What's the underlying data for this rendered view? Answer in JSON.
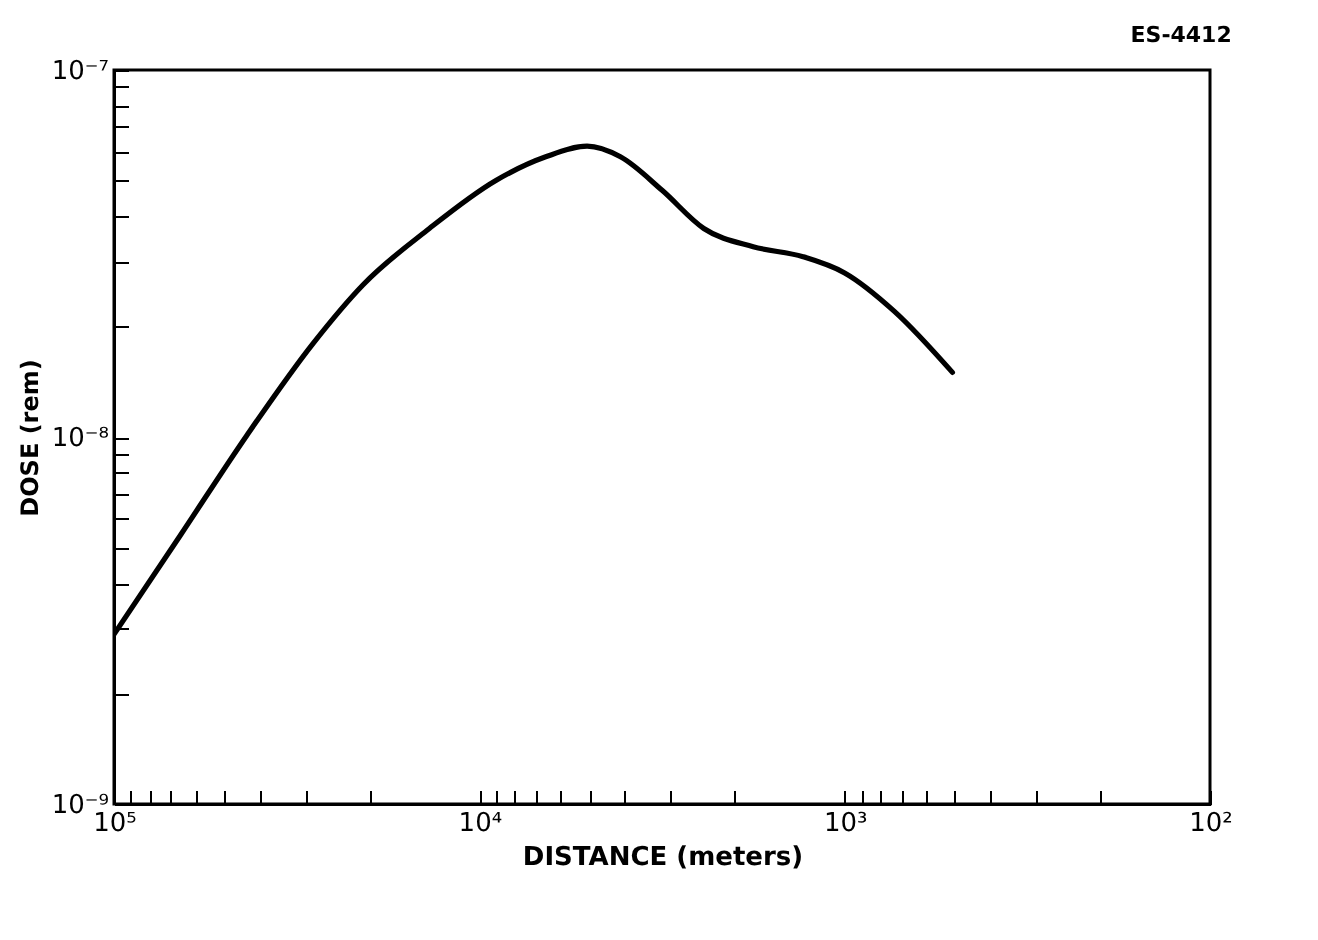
{
  "chart_data": {
    "type": "line",
    "xlabel": "DISTANCE (meters)",
    "ylabel": "DOSE (rem)",
    "annotations": [
      "ES-4412"
    ],
    "log": "xy",
    "grid": false,
    "marker": "none",
    "line_style": "solid",
    "xlim": [
      100000,
      100
    ],
    "ylim": [
      1e-09,
      1e-07
    ],
    "xticks": [
      {
        "value": 100000,
        "label": "10⁵"
      },
      {
        "value": 90000,
        "label": null
      },
      {
        "value": 80000,
        "label": null
      },
      {
        "value": 70000,
        "label": null
      },
      {
        "value": 60000,
        "label": null
      },
      {
        "value": 50000,
        "label": null
      },
      {
        "value": 40000,
        "label": null
      },
      {
        "value": 30000,
        "label": null
      },
      {
        "value": 20000,
        "label": null
      },
      {
        "value": 10000,
        "label": "10⁴"
      },
      {
        "value": 9000,
        "label": null
      },
      {
        "value": 8000,
        "label": null
      },
      {
        "value": 7000,
        "label": null
      },
      {
        "value": 6000,
        "label": null
      },
      {
        "value": 5000,
        "label": null
      },
      {
        "value": 4000,
        "label": null
      },
      {
        "value": 3000,
        "label": null
      },
      {
        "value": 2000,
        "label": null
      },
      {
        "value": 1000,
        "label": "10³"
      },
      {
        "value": 900,
        "label": null
      },
      {
        "value": 800,
        "label": null
      },
      {
        "value": 700,
        "label": null
      },
      {
        "value": 600,
        "label": null
      },
      {
        "value": 500,
        "label": null
      },
      {
        "value": 400,
        "label": null
      },
      {
        "value": 300,
        "label": null
      },
      {
        "value": 200,
        "label": null
      },
      {
        "value": 100,
        "label": "10²"
      }
    ],
    "yticks": [
      {
        "value": 1e-09,
        "label": "10⁻⁹"
      },
      {
        "value": 2e-09,
        "label": null
      },
      {
        "value": 3e-09,
        "label": null
      },
      {
        "value": 4e-09,
        "label": null
      },
      {
        "value": 5e-09,
        "label": null
      },
      {
        "value": 6e-09,
        "label": null
      },
      {
        "value": 7e-09,
        "label": null
      },
      {
        "value": 8e-09,
        "label": null
      },
      {
        "value": 9e-09,
        "label": null
      },
      {
        "value": 1e-08,
        "label": "10⁻⁸"
      },
      {
        "value": 2e-08,
        "label": null
      },
      {
        "value": 3e-08,
        "label": null
      },
      {
        "value": 4e-08,
        "label": null
      },
      {
        "value": 5e-08,
        "label": null
      },
      {
        "value": 6e-08,
        "label": null
      },
      {
        "value": 7e-08,
        "label": null
      },
      {
        "value": 8e-08,
        "label": null
      },
      {
        "value": 9e-08,
        "label": null
      },
      {
        "value": 1e-07,
        "label": "10⁻⁷"
      }
    ],
    "series": [
      {
        "color": "#000000",
        "x": [
          100000,
          65800,
          43300,
          28500,
          20800,
          13700,
          9010,
          6580,
          5070,
          4110,
          3160,
          2430,
          1780,
          1300,
          1000,
          731,
          507
        ],
        "values": [
          2.9e-09,
          5.4e-09,
          1.01e-08,
          1.8e-08,
          2.6e-08,
          3.7e-08,
          5e-08,
          5.8e-08,
          6.2e-08,
          5.8e-08,
          4.7e-08,
          3.7e-08,
          3.3e-08,
          3.1e-08,
          2.8e-08,
          2.2e-08,
          1.5e-08
        ]
      }
    ]
  }
}
